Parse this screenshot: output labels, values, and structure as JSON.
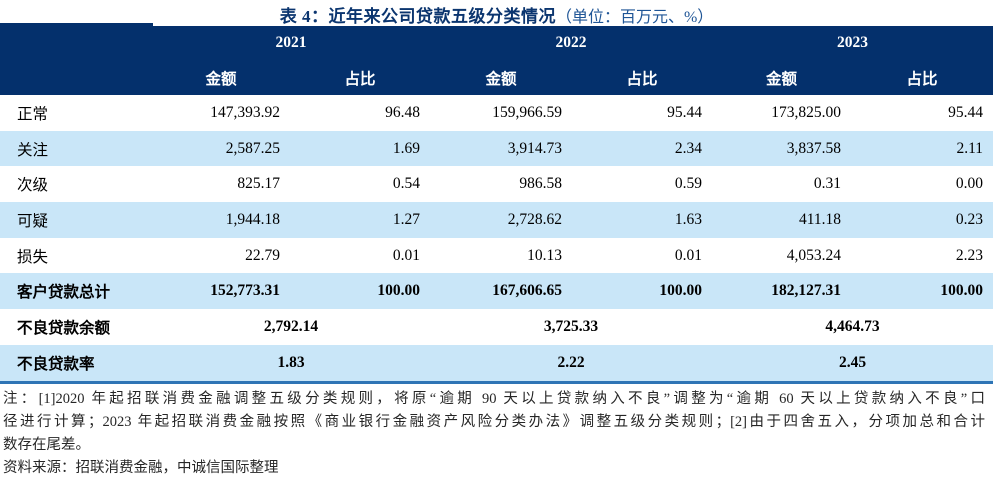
{
  "title": {
    "main": "表 4：近年来公司贷款五级分类情况",
    "unit": "（单位：百万元、%）"
  },
  "colors": {
    "header_navy": "#04306c",
    "title_navy": "#0b356f",
    "unit_blue": "#1f5596",
    "stripe_blue": "#c9e6f8",
    "rule_blue": "#2e74b5"
  },
  "table": {
    "years": [
      "2021",
      "2022",
      "2023"
    ],
    "sub_headers": [
      "金额",
      "占比"
    ],
    "rows": [
      {
        "label": "正常",
        "bold": false,
        "merged": false,
        "cells": [
          "147,393.92",
          "96.48",
          "159,966.59",
          "95.44",
          "173,825.00",
          "95.44"
        ]
      },
      {
        "label": "关注",
        "bold": false,
        "merged": false,
        "cells": [
          "2,587.25",
          "1.69",
          "3,914.73",
          "2.34",
          "3,837.58",
          "2.11"
        ]
      },
      {
        "label": "次级",
        "bold": false,
        "merged": false,
        "cells": [
          "825.17",
          "0.54",
          "986.58",
          "0.59",
          "0.31",
          "0.00"
        ]
      },
      {
        "label": "可疑",
        "bold": false,
        "merged": false,
        "cells": [
          "1,944.18",
          "1.27",
          "2,728.62",
          "1.63",
          "411.18",
          "0.23"
        ]
      },
      {
        "label": "损失",
        "bold": false,
        "merged": false,
        "cells": [
          "22.79",
          "0.01",
          "10.13",
          "0.01",
          "4,053.24",
          "2.23"
        ]
      },
      {
        "label": "客户贷款总计",
        "bold": true,
        "merged": false,
        "cells": [
          "152,773.31",
          "100.00",
          "167,606.65",
          "100.00",
          "182,127.31",
          "100.00"
        ]
      },
      {
        "label": "不良贷款余额",
        "bold": true,
        "merged": true,
        "cells": [
          "2,792.14",
          "3,725.33",
          "4,464.73"
        ]
      },
      {
        "label": "不良贷款率",
        "bold": true,
        "merged": true,
        "cells": [
          "1.83",
          "2.22",
          "2.45"
        ]
      }
    ]
  },
  "notes": {
    "lines": [
      "注：[1]2020 年起招联消费金融调整五级分类规则，将原“逾期 90 天以上贷款纳入不良”调整为“逾期 60 天以上贷款纳入不良”口",
      "径进行计算；2023 年起招联消费金融按照《商业银行金融资产风险分类办法》调整五级分类规则；[2]由于四舍五入，分项加总和合计",
      "数存在尾差。"
    ],
    "source": "资料来源：招联消费金融，中诚信国际整理"
  }
}
